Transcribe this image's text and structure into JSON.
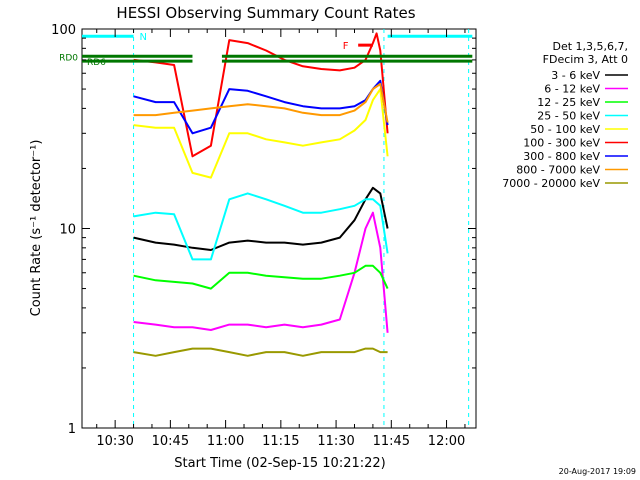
{
  "chart_data": {
    "type": "line",
    "title": "HESSI Observing Summary Count Rates",
    "xlabel": "Start Time (02-Sep-15 10:21:22)",
    "ylabel": "Count Rate (s⁻¹ detector⁻¹)",
    "yscale": "log",
    "ylim": [
      1,
      100
    ],
    "xlim_minutes": [
      0,
      107
    ],
    "x_ticks": [
      {
        "label": "10:30",
        "t": 9
      },
      {
        "label": "10:45",
        "t": 24
      },
      {
        "label": "11:00",
        "t": 39
      },
      {
        "label": "11:15",
        "t": 54
      },
      {
        "label": "11:30",
        "t": 69
      },
      {
        "label": "11:45",
        "t": 84
      },
      {
        "label": "12:00",
        "t": 99
      }
    ],
    "y_tick_labels": [
      {
        "label": "1",
        "v": 1
      },
      {
        "label": "10",
        "v": 10
      },
      {
        "label": "100",
        "v": 100
      }
    ],
    "legend_header": [
      "Det 1,3,5,6,7,",
      "FDecim 3, Att 0"
    ],
    "legend_position": "right",
    "series": [
      {
        "name": "3 - 6 keV",
        "color": "#000000",
        "points": [
          [
            14,
            9
          ],
          [
            20,
            8.5
          ],
          [
            25,
            8.3
          ],
          [
            30,
            8
          ],
          [
            35,
            7.8
          ],
          [
            40,
            8.5
          ],
          [
            45,
            8.7
          ],
          [
            50,
            8.5
          ],
          [
            55,
            8.5
          ],
          [
            60,
            8.3
          ],
          [
            65,
            8.5
          ],
          [
            70,
            9
          ],
          [
            74,
            11
          ],
          [
            77,
            14
          ],
          [
            79,
            16
          ],
          [
            81,
            15
          ],
          [
            83,
            10
          ]
        ]
      },
      {
        "name": "6 - 12 keV",
        "color": "#ff00ff",
        "points": [
          [
            14,
            3.4
          ],
          [
            20,
            3.3
          ],
          [
            25,
            3.2
          ],
          [
            30,
            3.2
          ],
          [
            35,
            3.1
          ],
          [
            40,
            3.3
          ],
          [
            45,
            3.3
          ],
          [
            50,
            3.2
          ],
          [
            55,
            3.3
          ],
          [
            60,
            3.2
          ],
          [
            65,
            3.3
          ],
          [
            70,
            3.5
          ],
          [
            74,
            6
          ],
          [
            77,
            10
          ],
          [
            79,
            12
          ],
          [
            81,
            8
          ],
          [
            83,
            3
          ]
        ]
      },
      {
        "name": "12 - 25 keV",
        "color": "#00ff00",
        "points": [
          [
            14,
            5.8
          ],
          [
            20,
            5.5
          ],
          [
            25,
            5.4
          ],
          [
            30,
            5.3
          ],
          [
            35,
            5
          ],
          [
            40,
            6
          ],
          [
            45,
            6
          ],
          [
            50,
            5.8
          ],
          [
            55,
            5.7
          ],
          [
            60,
            5.6
          ],
          [
            65,
            5.6
          ],
          [
            70,
            5.8
          ],
          [
            74,
            6
          ],
          [
            77,
            6.5
          ],
          [
            79,
            6.5
          ],
          [
            81,
            6
          ],
          [
            83,
            5
          ]
        ]
      },
      {
        "name": "25 - 50 keV",
        "color": "#00ffff",
        "points": [
          [
            14,
            11.5
          ],
          [
            20,
            12
          ],
          [
            25,
            11.8
          ],
          [
            30,
            7
          ],
          [
            35,
            7
          ],
          [
            40,
            14
          ],
          [
            45,
            15
          ],
          [
            50,
            14
          ],
          [
            55,
            13
          ],
          [
            60,
            12
          ],
          [
            65,
            12
          ],
          [
            70,
            12.5
          ],
          [
            74,
            13
          ],
          [
            77,
            14
          ],
          [
            79,
            14
          ],
          [
            81,
            13
          ],
          [
            83,
            7.5
          ]
        ]
      },
      {
        "name": "50 - 100 keV",
        "color": "#ffff00",
        "points": [
          [
            14,
            33
          ],
          [
            20,
            32
          ],
          [
            25,
            32
          ],
          [
            30,
            19
          ],
          [
            35,
            18
          ],
          [
            40,
            30
          ],
          [
            45,
            30
          ],
          [
            50,
            28
          ],
          [
            55,
            27
          ],
          [
            60,
            26
          ],
          [
            65,
            27
          ],
          [
            70,
            28
          ],
          [
            74,
            31
          ],
          [
            77,
            35
          ],
          [
            79,
            44
          ],
          [
            81,
            50
          ],
          [
            83,
            23
          ]
        ]
      },
      {
        "name": "100 - 300 keV",
        "color": "#ff0000",
        "points": [
          [
            14,
            70
          ],
          [
            20,
            68
          ],
          [
            25,
            66
          ],
          [
            30,
            23
          ],
          [
            35,
            26
          ],
          [
            40,
            88
          ],
          [
            45,
            85
          ],
          [
            50,
            78
          ],
          [
            55,
            70
          ],
          [
            60,
            65
          ],
          [
            65,
            63
          ],
          [
            70,
            62
          ],
          [
            74,
            64
          ],
          [
            77,
            70
          ],
          [
            79,
            85
          ],
          [
            80,
            95
          ],
          [
            81,
            78
          ],
          [
            83,
            30
          ]
        ]
      },
      {
        "name": "300 - 800 keV",
        "color": "#0000ff",
        "points": [
          [
            14,
            46
          ],
          [
            20,
            43
          ],
          [
            25,
            43
          ],
          [
            30,
            30
          ],
          [
            35,
            32
          ],
          [
            40,
            50
          ],
          [
            45,
            49
          ],
          [
            50,
            46
          ],
          [
            55,
            43
          ],
          [
            60,
            41
          ],
          [
            65,
            40
          ],
          [
            70,
            40
          ],
          [
            74,
            41
          ],
          [
            77,
            44
          ],
          [
            79,
            50
          ],
          [
            81,
            55
          ],
          [
            83,
            33
          ]
        ]
      },
      {
        "name": "800 - 7000 keV",
        "color": "#ff9900",
        "points": [
          [
            14,
            37
          ],
          [
            20,
            37
          ],
          [
            25,
            38
          ],
          [
            30,
            39
          ],
          [
            35,
            40
          ],
          [
            40,
            41
          ],
          [
            45,
            42
          ],
          [
            50,
            41
          ],
          [
            55,
            40
          ],
          [
            60,
            38
          ],
          [
            65,
            37
          ],
          [
            70,
            37
          ],
          [
            74,
            39
          ],
          [
            77,
            43
          ],
          [
            79,
            50
          ],
          [
            81,
            53
          ],
          [
            83,
            34
          ]
        ]
      },
      {
        "name": "7000 - 20000 keV",
        "color": "#999900",
        "points": [
          [
            14,
            2.4
          ],
          [
            20,
            2.3
          ],
          [
            25,
            2.4
          ],
          [
            30,
            2.5
          ],
          [
            35,
            2.5
          ],
          [
            40,
            2.4
          ],
          [
            45,
            2.3
          ],
          [
            50,
            2.4
          ],
          [
            55,
            2.4
          ],
          [
            60,
            2.3
          ],
          [
            65,
            2.4
          ],
          [
            70,
            2.4
          ],
          [
            74,
            2.4
          ],
          [
            77,
            2.5
          ],
          [
            79,
            2.5
          ],
          [
            81,
            2.4
          ],
          [
            83,
            2.4
          ]
        ]
      }
    ],
    "flags": [
      {
        "name": "N",
        "color": "#00ffff",
        "segments": [
          [
            0,
            14
          ],
          [
            83,
            106
          ]
        ],
        "marker_t": 14,
        "v": 92
      },
      {
        "name": "F",
        "color": "#ff0000",
        "segments": [
          [
            75,
            79
          ]
        ],
        "marker_t": 74,
        "v": 83
      },
      {
        "name": "RD0",
        "color": "#007700",
        "segments": [
          [
            0,
            30
          ],
          [
            38,
            106
          ]
        ],
        "v": 73
      },
      {
        "name": "RD6",
        "color": "#007700",
        "segments": [
          [
            0,
            30
          ],
          [
            38,
            106
          ]
        ],
        "v": 69
      }
    ],
    "event_lines": [
      {
        "t": 14,
        "color": "#00ffff"
      },
      {
        "t": 82,
        "color": "#00ffff"
      },
      {
        "t": 105,
        "color": "#00ffff"
      }
    ],
    "footer_stamp": "20-Aug-2017 19:09"
  }
}
